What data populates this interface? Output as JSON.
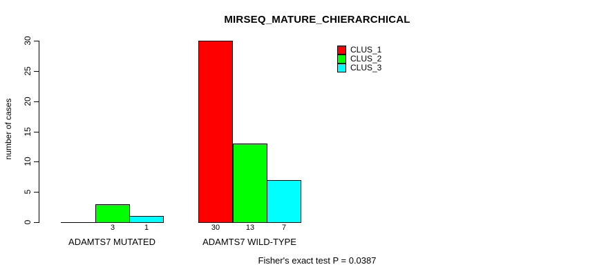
{
  "chart_data": {
    "type": "bar",
    "title": "MIRSEQ_MATURE_CHIERARCHICAL",
    "xlabel": "",
    "ylabel": "number of cases",
    "ylim": [
      0,
      30
    ],
    "yticks": [
      0,
      5,
      10,
      15,
      20,
      25,
      30
    ],
    "grid": false,
    "legend_position": "top-right",
    "categories": [
      "ADAMTS7 MUTATED",
      "ADAMTS7 WILD-TYPE"
    ],
    "series": [
      {
        "name": "CLUS_1",
        "color": "#ff0000",
        "values": [
          0,
          30
        ]
      },
      {
        "name": "CLUS_2",
        "color": "#00ff00",
        "values": [
          3,
          13
        ]
      },
      {
        "name": "CLUS_3",
        "color": "#00ffff",
        "values": [
          1,
          7
        ]
      }
    ],
    "value_labels": [
      [
        "",
        "3",
        "1"
      ],
      [
        "30",
        "13",
        "7"
      ]
    ],
    "annotation": "Fisher's exact test P = 0.0387"
  },
  "colors": {
    "background": "#ffffff",
    "axis": "#000000",
    "text": "#000000"
  }
}
